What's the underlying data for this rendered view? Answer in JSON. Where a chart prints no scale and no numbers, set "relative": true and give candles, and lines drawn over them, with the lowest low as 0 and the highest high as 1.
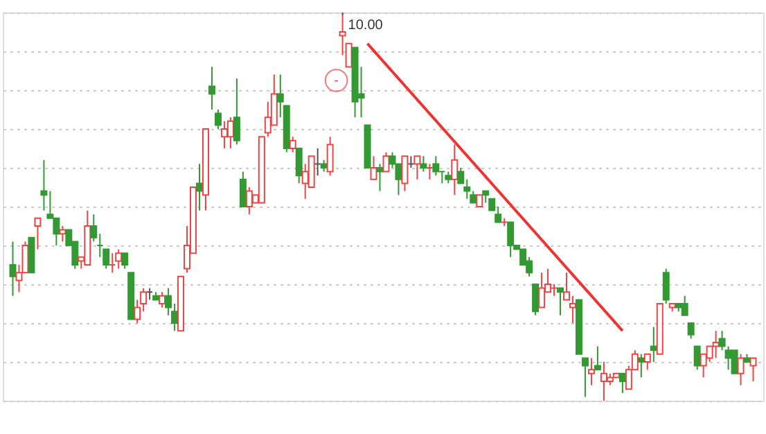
{
  "chart_data": {
    "type": "candlestick",
    "relative": true,
    "grid": true,
    "categories": [
      null,
      null,
      null,
      null,
      null,
      null,
      null,
      null,
      null,
      null,
      null,
      null,
      null,
      null,
      null,
      null,
      null,
      null,
      null,
      null,
      null,
      null,
      null,
      null,
      null,
      null,
      null,
      null,
      null,
      null,
      null,
      null,
      null,
      null,
      null,
      null,
      null,
      null,
      null,
      null,
      null,
      null,
      null,
      null,
      null,
      null,
      null,
      null,
      null,
      null,
      null,
      null,
      null,
      null,
      null,
      null,
      null,
      null,
      null,
      null,
      null,
      null,
      null,
      null,
      null,
      null,
      null,
      null,
      null,
      null,
      null,
      null,
      null,
      null,
      null,
      null,
      null,
      null,
      null,
      null,
      null,
      null,
      null,
      null,
      null,
      null,
      null,
      null,
      null,
      null,
      null,
      null,
      null,
      null,
      null,
      null,
      null,
      null,
      null,
      null,
      null,
      null,
      null,
      null,
      null,
      null,
      null,
      null,
      null,
      null,
      null,
      null,
      null,
      null,
      null,
      null,
      null,
      null,
      null,
      null
    ],
    "ohlc": [
      [
        0.35,
        0.41,
        0.27,
        0.32
      ],
      [
        0.31,
        0.35,
        0.28,
        0.33
      ],
      [
        0.33,
        0.41,
        0.33,
        0.4
      ],
      [
        0.42,
        0.42,
        0.33,
        0.33
      ],
      [
        0.45,
        0.47,
        0.39,
        0.47
      ],
      [
        0.54,
        0.62,
        0.49,
        0.53
      ],
      [
        0.48,
        0.54,
        0.47,
        0.47
      ],
      [
        0.47,
        0.47,
        0.4,
        0.43
      ],
      [
        0.43,
        0.45,
        0.41,
        0.44
      ],
      [
        0.44,
        0.44,
        0.4,
        0.4
      ],
      [
        0.41,
        0.41,
        0.34,
        0.35
      ],
      [
        0.36,
        0.37,
        0.34,
        0.37
      ],
      [
        0.35,
        0.49,
        0.35,
        0.45
      ],
      [
        0.45,
        0.48,
        0.41,
        0.42
      ],
      [
        0.4,
        0.43,
        0.37,
        0.4
      ],
      [
        0.39,
        0.39,
        0.34,
        0.35
      ],
      [
        0.35,
        0.38,
        0.33,
        0.35
      ],
      [
        0.36,
        0.39,
        0.34,
        0.38
      ],
      [
        0.38,
        0.38,
        0.34,
        0.35
      ],
      [
        0.33,
        0.33,
        0.21,
        0.21
      ],
      [
        0.21,
        0.26,
        0.2,
        0.24
      ],
      [
        0.25,
        0.29,
        0.23,
        0.28
      ],
      [
        0.28,
        0.29,
        0.26,
        0.28
      ],
      [
        0.27,
        0.28,
        0.26,
        0.26
      ],
      [
        0.25,
        0.28,
        0.24,
        0.27
      ],
      [
        0.27,
        0.29,
        0.22,
        0.24
      ],
      [
        0.23,
        0.25,
        0.18,
        0.2
      ],
      [
        0.18,
        0.32,
        0.18,
        0.32
      ],
      [
        0.34,
        0.45,
        0.33,
        0.4
      ],
      [
        0.38,
        0.55,
        0.38,
        0.55
      ],
      [
        0.56,
        0.61,
        0.49,
        0.54
      ],
      [
        0.53,
        0.7,
        0.49,
        0.7
      ],
      [
        0.81,
        0.86,
        0.75,
        0.79
      ],
      [
        0.74,
        0.75,
        0.7,
        0.71
      ],
      [
        0.68,
        0.72,
        0.65,
        0.7
      ],
      [
        0.68,
        0.73,
        0.65,
        0.72
      ],
      [
        0.73,
        0.83,
        0.66,
        0.67
      ],
      [
        0.57,
        0.59,
        0.5,
        0.5
      ],
      [
        0.5,
        0.55,
        0.48,
        0.54
      ],
      [
        0.51,
        0.53,
        0.51,
        0.53
      ],
      [
        0.51,
        0.68,
        0.51,
        0.68
      ],
      [
        0.69,
        0.77,
        0.68,
        0.73
      ],
      [
        0.71,
        0.84,
        0.71,
        0.79
      ],
      [
        0.79,
        0.84,
        0.73,
        0.77
      ],
      [
        0.76,
        0.76,
        0.64,
        0.65
      ],
      [
        0.65,
        0.68,
        0.64,
        0.67
      ],
      [
        0.65,
        0.65,
        0.56,
        0.58
      ],
      [
        0.56,
        0.61,
        0.52,
        0.59
      ],
      [
        0.55,
        0.63,
        0.55,
        0.63
      ],
      [
        0.61,
        0.65,
        0.58,
        0.61
      ],
      [
        0.61,
        0.62,
        0.59,
        0.6
      ],
      [
        0.59,
        0.68,
        0.58,
        0.66
      ],
      null,
      [
        0.94,
        1.0,
        0.89,
        0.95
      ],
      [
        0.86,
        0.92,
        0.86,
        0.92
      ],
      [
        0.91,
        0.91,
        0.73,
        0.77
      ],
      [
        0.79,
        0.86,
        0.73,
        0.78
      ],
      [
        0.71,
        0.71,
        0.6,
        0.6
      ],
      [
        0.57,
        0.63,
        0.57,
        0.6
      ],
      [
        0.6,
        0.61,
        0.54,
        0.59
      ],
      [
        0.59,
        0.64,
        0.59,
        0.63
      ],
      [
        0.63,
        0.64,
        0.6,
        0.61
      ],
      [
        0.61,
        0.61,
        0.53,
        0.57
      ],
      [
        0.56,
        0.63,
        0.54,
        0.63
      ],
      [
        0.61,
        0.63,
        0.6,
        0.61
      ],
      [
        0.61,
        0.63,
        0.57,
        0.63
      ],
      [
        0.61,
        0.63,
        0.59,
        0.6
      ],
      [
        0.6,
        0.61,
        0.57,
        0.6
      ],
      [
        0.61,
        0.63,
        0.58,
        0.59
      ],
      [
        0.59,
        0.59,
        0.56,
        0.59
      ],
      [
        0.58,
        0.59,
        0.56,
        0.57
      ],
      [
        0.57,
        0.66,
        0.53,
        0.62
      ],
      [
        0.59,
        0.6,
        0.56,
        0.56
      ],
      [
        0.55,
        0.57,
        0.52,
        0.54
      ],
      [
        0.53,
        0.54,
        0.51,
        0.51
      ],
      [
        0.5,
        0.53,
        0.5,
        0.53
      ],
      [
        0.54,
        0.54,
        0.51,
        0.53
      ],
      [
        0.52,
        0.52,
        0.49,
        0.49
      ],
      [
        0.48,
        0.5,
        0.46,
        0.46
      ],
      [
        0.46,
        0.47,
        0.45,
        0.46
      ],
      [
        0.46,
        0.46,
        0.37,
        0.4
      ],
      [
        0.4,
        0.4,
        0.39,
        0.39
      ],
      [
        0.39,
        0.39,
        0.35,
        0.35
      ],
      [
        0.36,
        0.37,
        0.32,
        0.33
      ],
      [
        0.3,
        0.3,
        0.22,
        0.23
      ],
      [
        0.24,
        0.33,
        0.24,
        0.29
      ],
      [
        0.28,
        0.34,
        0.28,
        0.3
      ],
      [
        0.29,
        0.3,
        0.27,
        0.29
      ],
      [
        0.29,
        0.29,
        0.22,
        0.28
      ],
      [
        0.26,
        0.33,
        0.26,
        0.28
      ],
      [
        0.24,
        0.27,
        0.2,
        0.25
      ],
      [
        0.26,
        0.26,
        0.12,
        0.12
      ],
      [
        0.11,
        0.11,
        0.01,
        0.09
      ],
      [
        0.07,
        0.11,
        0.04,
        0.08
      ],
      [
        0.09,
        0.14,
        0.08,
        0.08
      ],
      [
        0.05,
        0.1,
        0.0,
        0.07
      ],
      [
        0.05,
        0.07,
        0.04,
        0.06
      ],
      [
        0.06,
        0.07,
        0.06,
        0.07
      ],
      [
        0.07,
        0.07,
        0.02,
        0.05
      ],
      [
        0.03,
        0.09,
        0.03,
        0.08
      ],
      [
        0.08,
        0.13,
        0.08,
        0.12
      ],
      [
        0.11,
        0.12,
        0.06,
        0.1
      ],
      [
        0.1,
        0.12,
        0.08,
        0.12
      ],
      [
        0.14,
        0.19,
        0.1,
        0.13
      ],
      [
        0.12,
        0.25,
        0.12,
        0.25
      ],
      [
        0.33,
        0.34,
        0.25,
        0.26
      ],
      [
        0.24,
        0.25,
        0.23,
        0.25
      ],
      [
        0.25,
        0.25,
        0.23,
        0.24
      ],
      [
        0.25,
        0.27,
        0.22,
        0.22
      ],
      [
        0.2,
        0.2,
        0.16,
        0.17
      ],
      [
        0.14,
        0.14,
        0.08,
        0.09
      ],
      [
        0.09,
        0.12,
        0.06,
        0.12
      ],
      [
        0.11,
        0.14,
        0.1,
        0.14
      ],
      [
        0.14,
        0.18,
        0.11,
        0.15
      ],
      [
        0.16,
        0.18,
        0.13,
        0.14
      ],
      [
        0.13,
        0.14,
        0.08,
        0.11
      ],
      [
        0.13,
        0.13,
        0.07,
        0.07
      ],
      [
        0.07,
        0.12,
        0.04,
        0.11
      ],
      [
        0.11,
        0.12,
        0.1,
        0.1
      ],
      [
        0.09,
        0.11,
        0.05,
        0.11
      ]
    ],
    "colors": [
      "#339933",
      "#ee4444",
      "#ee4444",
      "#339933",
      "#ee4444",
      "#339933",
      "#339933",
      "#339933",
      "#ee4444",
      "#339933",
      "#339933",
      "#ee4444",
      "#ee4444",
      "#339933",
      "#339933",
      "#339933",
      "#ee4444",
      "#ee4444",
      "#339933",
      "#339933",
      "#ee4444",
      "#ee4444",
      "#555555",
      "#339933",
      "#ee4444",
      "#339933",
      "#339933",
      "#ee4444",
      "#ee4444",
      "#ee4444",
      "#339933",
      "#ee4444",
      "#339933",
      "#339933",
      "#ee4444",
      "#ee4444",
      "#339933",
      "#339933",
      "#ee4444",
      "#ee4444",
      "#ee4444",
      "#ee4444",
      "#ee4444",
      "#339933",
      "#339933",
      "#ee4444",
      "#339933",
      "#ee4444",
      "#ee4444",
      "#555555",
      "#339933",
      "#ee4444",
      null,
      "#ee4444",
      "#ee4444",
      "#339933",
      "#339933",
      "#339933",
      "#ee4444",
      "#339933",
      "#ee4444",
      "#339933",
      "#339933",
      "#ee4444",
      "#555555",
      "#ee4444",
      "#339933",
      "#ee4444",
      "#339933",
      "#339933",
      "#339933",
      "#ee4444",
      "#339933",
      "#339933",
      "#339933",
      "#ee4444",
      "#339933",
      "#339933",
      "#339933",
      "#ee4444",
      "#339933",
      "#339933",
      "#339933",
      "#339933",
      "#339933",
      "#ee4444",
      "#ee4444",
      "#ee4444",
      "#339933",
      "#ee4444",
      "#ee4444",
      "#339933",
      "#339933",
      "#ee4444",
      "#339933",
      "#ee4444",
      "#ee4444",
      "#ee4444",
      "#339933",
      "#ee4444",
      "#ee4444",
      "#339933",
      "#ee4444",
      "#339933",
      "#ee4444",
      "#339933",
      "#ee4444",
      "#339933",
      "#339933",
      "#339933",
      "#339933",
      "#ee4444",
      "#ee4444",
      "#ee4444",
      "#339933",
      "#339933",
      "#339933",
      "#ee4444",
      "#339933",
      "#ee4444"
    ],
    "series": [
      {
        "type": "line",
        "color": "#ee3333",
        "values": [
          null,
          null,
          null,
          null,
          null,
          null,
          null,
          null,
          null,
          null,
          null,
          null,
          null,
          null,
          null,
          null,
          null,
          null,
          null,
          null,
          null,
          null,
          null,
          null,
          null,
          null,
          null,
          null,
          null,
          null,
          null,
          null,
          null,
          null,
          null,
          null,
          null,
          null,
          null,
          null,
          null,
          null,
          null,
          null,
          null,
          null,
          null,
          null,
          null,
          null,
          null,
          null,
          null,
          null,
          null,
          null,
          null,
          0.92,
          null,
          null,
          null,
          null,
          null,
          null,
          null,
          null,
          null,
          null,
          null,
          null,
          null,
          null,
          null,
          null,
          null,
          null,
          null,
          null,
          null,
          null,
          null,
          null,
          null,
          null,
          null,
          null,
          null,
          null,
          null,
          null,
          null,
          null,
          null,
          null,
          null,
          null,
          null,
          null,
          0.18,
          null,
          null,
          null,
          null,
          null,
          null,
          null,
          null,
          null,
          null,
          null,
          null,
          null,
          null,
          null,
          null,
          null,
          null,
          null,
          null,
          null
        ]
      }
    ],
    "annotations": [
      "10.00",
      "-"
    ]
  }
}
